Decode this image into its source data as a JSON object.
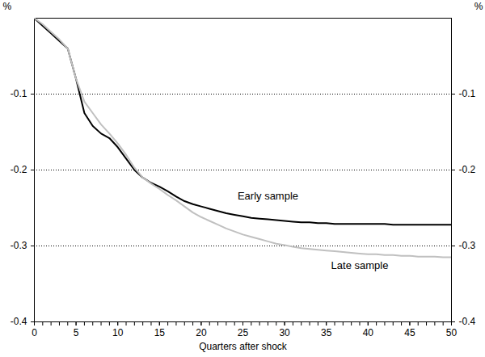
{
  "chart_data": {
    "type": "line",
    "x_label": "Quarters after shock",
    "y_label": "%",
    "x": [
      0,
      1,
      2,
      3,
      4,
      5,
      6,
      7,
      8,
      9,
      10,
      11,
      12,
      13,
      14,
      15,
      16,
      17,
      18,
      19,
      20,
      21,
      22,
      23,
      24,
      25,
      26,
      27,
      28,
      29,
      30,
      31,
      32,
      33,
      34,
      35,
      36,
      37,
      38,
      39,
      40,
      41,
      42,
      43,
      44,
      45,
      46,
      47,
      48,
      49,
      50
    ],
    "series": [
      {
        "name": "Early sample",
        "color": "#000000",
        "values": [
          0,
          -0.01,
          -0.02,
          -0.03,
          -0.04,
          -0.08,
          -0.125,
          -0.142,
          -0.152,
          -0.158,
          -0.17,
          -0.185,
          -0.2,
          -0.21,
          -0.217,
          -0.222,
          -0.228,
          -0.235,
          -0.241,
          -0.245,
          -0.248,
          -0.251,
          -0.254,
          -0.257,
          -0.259,
          -0.261,
          -0.263,
          -0.264,
          -0.265,
          -0.266,
          -0.267,
          -0.268,
          -0.269,
          -0.269,
          -0.27,
          -0.27,
          -0.271,
          -0.271,
          -0.271,
          -0.271,
          -0.271,
          -0.271,
          -0.271,
          -0.272,
          -0.272,
          -0.272,
          -0.272,
          -0.272,
          -0.272,
          -0.272,
          -0.272
        ]
      },
      {
        "name": "Late sample",
        "color": "#c0c0c0",
        "values": [
          0,
          -0.008,
          -0.018,
          -0.028,
          -0.04,
          -0.08,
          -0.11,
          -0.125,
          -0.14,
          -0.152,
          -0.165,
          -0.18,
          -0.197,
          -0.21,
          -0.218,
          -0.225,
          -0.233,
          -0.24,
          -0.248,
          -0.256,
          -0.262,
          -0.267,
          -0.272,
          -0.277,
          -0.281,
          -0.285,
          -0.288,
          -0.291,
          -0.294,
          -0.297,
          -0.299,
          -0.301,
          -0.303,
          -0.304,
          -0.305,
          -0.306,
          -0.307,
          -0.308,
          -0.309,
          -0.31,
          -0.311,
          -0.311,
          -0.312,
          -0.312,
          -0.313,
          -0.313,
          -0.314,
          -0.314,
          -0.314,
          -0.315,
          -0.315
        ]
      }
    ],
    "annotations": [
      {
        "text": "Early sample",
        "x": 28,
        "y": -0.234
      },
      {
        "text": "Late sample",
        "x": 39,
        "y": -0.326
      }
    ],
    "xlim": [
      0,
      50
    ],
    "xticks": [
      0,
      5,
      10,
      15,
      20,
      25,
      30,
      35,
      40,
      45,
      50
    ],
    "ylim": [
      -0.4,
      0
    ],
    "yticks": [
      -0.4,
      -0.3,
      -0.2,
      -0.1
    ],
    "grid": true
  }
}
